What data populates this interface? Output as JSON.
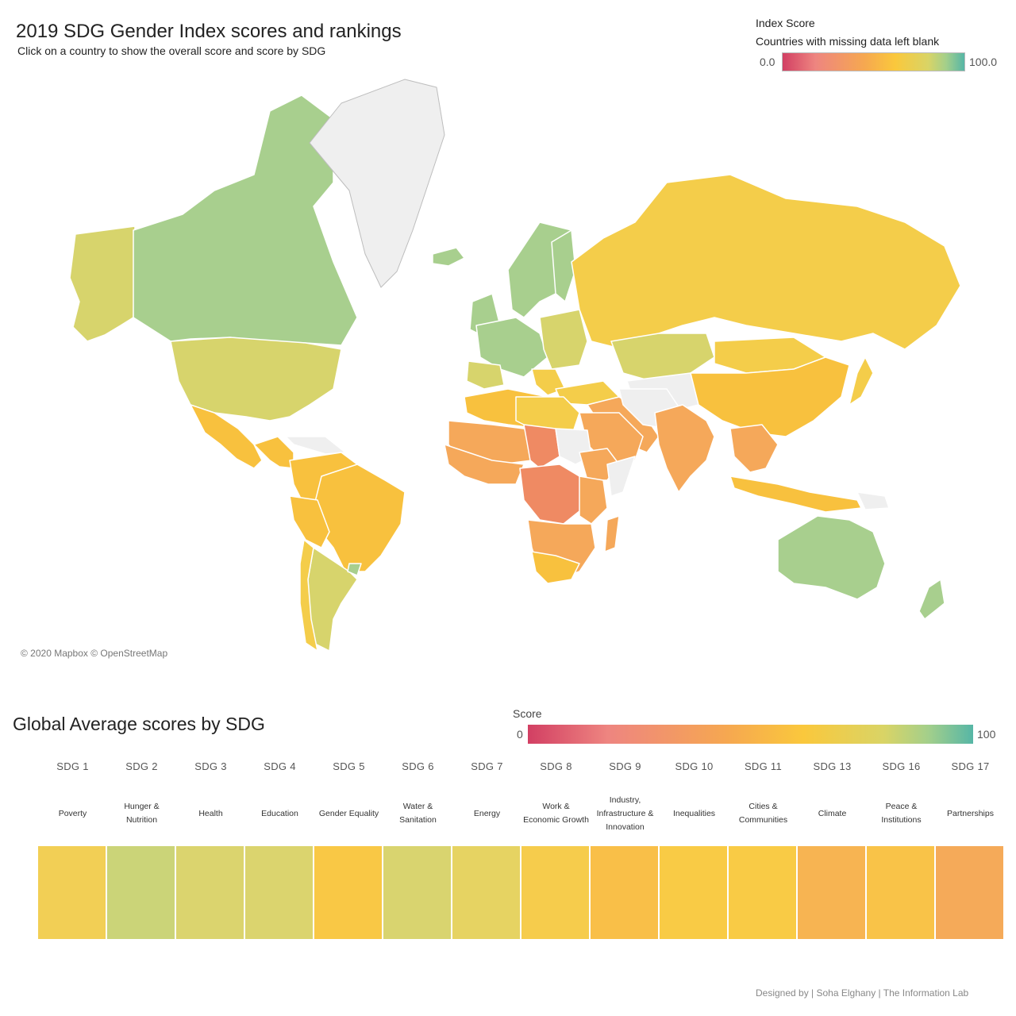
{
  "header": {
    "title": "2019 SDG Gender Index scores and rankings",
    "subtitle": "Click on a country to show the overall score and score by SDG"
  },
  "map_legend": {
    "title": "Index Score",
    "note": "Countries with missing data left blank",
    "min_label": "0.0",
    "max_label": "100.0",
    "colors": [
      "#d23f63",
      "#ee8580",
      "#f6a850",
      "#fac83c",
      "#d9d466",
      "#a3cf8b",
      "#56b6a6"
    ]
  },
  "map": {
    "attribution": "© 2020 Mapbox © OpenStreetMap",
    "colors": {
      "ocean": "#ffffff",
      "missing": "#efefef",
      "border": "#ffffff",
      "green": "#a8cf8e",
      "yellow_green": "#d7d46c",
      "yellow": "#f4cd4a",
      "orange_yellow": "#f8c13e",
      "orange": "#f5a85a",
      "red_orange": "#ef8a63"
    }
  },
  "sdg_section": {
    "title": "Global Average scores by SDG",
    "score_legend_title": "Score",
    "score_min": "0",
    "score_max": "100",
    "items": [
      {
        "code": "SDG 1",
        "name": "Poverty",
        "color": "#f2cf55"
      },
      {
        "code": "SDG 2",
        "name": "Hunger & Nutrition",
        "color": "#cbd478"
      },
      {
        "code": "SDG 3",
        "name": "Health",
        "color": "#dbd46e"
      },
      {
        "code": "SDG 4",
        "name": "Education",
        "color": "#dbd46e"
      },
      {
        "code": "SDG 5",
        "name": "Gender Equality",
        "color": "#f9c845"
      },
      {
        "code": "SDG 6",
        "name": "Water & Sanitation",
        "color": "#d9d46f"
      },
      {
        "code": "SDG 7",
        "name": "Energy",
        "color": "#e6d362"
      },
      {
        "code": "SDG 8",
        "name": "Work & Economic Growth",
        "color": "#f6cc4c"
      },
      {
        "code": "SDG 9",
        "name": "Industry, Infrastructure & Innovation",
        "color": "#f9bf48"
      },
      {
        "code": "SDG 10",
        "name": "Inequalities",
        "color": "#f9cb45"
      },
      {
        "code": "SDG 11",
        "name": "Cities & Communities",
        "color": "#f9cb45"
      },
      {
        "code": "SDG 13",
        "name": "Climate",
        "color": "#f7b452"
      },
      {
        "code": "SDG 16",
        "name": "Peace & Institutions",
        "color": "#f9c348"
      },
      {
        "code": "SDG 17",
        "name": "Partnerships",
        "color": "#f5aa59"
      }
    ]
  },
  "footer": "Designed by | Soha Elghany | The Information Lab"
}
